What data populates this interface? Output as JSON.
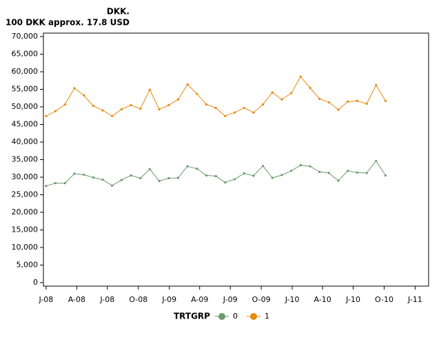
{
  "chart_data": {
    "type": "line",
    "y_label_lines": [
      "DKK.",
      "100 DKK approx. 17.8 USD"
    ],
    "x": [
      "2008-01-01",
      "2008-01-29",
      "2008-02-26",
      "2008-03-25",
      "2008-04-22",
      "2008-05-20",
      "2008-06-17",
      "2008-07-15",
      "2008-08-12",
      "2008-09-09",
      "2008-10-07",
      "2008-11-04",
      "2008-12-02",
      "2008-12-30",
      "2009-01-27",
      "2009-02-24",
      "2009-03-24",
      "2009-04-21",
      "2009-05-19",
      "2009-06-16",
      "2009-07-14",
      "2009-08-11",
      "2009-09-08",
      "2009-10-06",
      "2009-11-03",
      "2009-12-01",
      "2009-12-29",
      "2010-01-26",
      "2010-02-23",
      "2010-03-23",
      "2010-04-20",
      "2010-05-18",
      "2010-06-15",
      "2010-07-13",
      "2010-08-10",
      "2010-09-07",
      "2010-10-05"
    ],
    "series": [
      {
        "name": "0",
        "color": "#6a9a6a",
        "values": [
          27500,
          28300,
          28300,
          31000,
          30700,
          29900,
          29300,
          27600,
          29200,
          30500,
          29700,
          32300,
          28900,
          29700,
          29800,
          33100,
          32400,
          30500,
          30300,
          28500,
          29400,
          31100,
          30400,
          33200,
          29800,
          30600,
          31800,
          33400,
          33100,
          31500,
          31200,
          29000,
          31800,
          31300,
          31200,
          34600,
          30500
        ]
      },
      {
        "name": "1",
        "color": "#e8890c",
        "values": [
          47400,
          48800,
          50700,
          55300,
          53300,
          50300,
          49000,
          47400,
          49300,
          50500,
          49500,
          54900,
          49300,
          50500,
          52100,
          56400,
          53700,
          50700,
          49700,
          47400,
          48400,
          49700,
          48400,
          50700,
          54100,
          52100,
          53900,
          58600,
          55400,
          52300,
          51300,
          49200,
          51500,
          51700,
          50900,
          56200,
          51700
        ]
      }
    ],
    "legend_title": "TRTGRP",
    "xlim": [
      "2007-12-24",
      "2011-02-10"
    ],
    "xticks": [
      {
        "value": "2008-01-01",
        "label": "J-08"
      },
      {
        "value": "2008-04-01",
        "label": "A-08"
      },
      {
        "value": "2008-07-01",
        "label": "J-08"
      },
      {
        "value": "2008-10-01",
        "label": "O-08"
      },
      {
        "value": "2009-01-01",
        "label": "J-09"
      },
      {
        "value": "2009-04-01",
        "label": "A-09"
      },
      {
        "value": "2009-07-01",
        "label": "J-09"
      },
      {
        "value": "2009-10-01",
        "label": "O-09"
      },
      {
        "value": "2010-01-01",
        "label": "J-10"
      },
      {
        "value": "2010-04-01",
        "label": "A-10"
      },
      {
        "value": "2010-07-01",
        "label": "J-10"
      },
      {
        "value": "2010-10-01",
        "label": "O-10"
      },
      {
        "value": "2011-01-01",
        "label": "J-11"
      }
    ],
    "ylim": [
      -1000,
      71000
    ],
    "yticks": [
      0,
      {
        "value": 5000,
        "label": "5,000"
      },
      {
        "value": 10000,
        "label": "10,000"
      },
      {
        "value": 15000,
        "label": "15,000"
      },
      {
        "value": 20000,
        "label": "20,000"
      },
      {
        "value": 25000,
        "label": "25,000"
      },
      {
        "value": 30000,
        "label": "30,000"
      },
      {
        "value": 35000,
        "label": "35,000"
      },
      {
        "value": 40000,
        "label": "40,000"
      },
      {
        "value": 45000,
        "label": "45,000"
      },
      {
        "value": 50000,
        "label": "50,000"
      },
      {
        "value": 55000,
        "label": "55,000"
      },
      {
        "value": 60000,
        "label": "60,000"
      },
      {
        "value": 65000,
        "label": "65,000"
      },
      {
        "value": 70000,
        "label": "70,000"
      }
    ],
    "grid": false,
    "legend_position": "bottom"
  }
}
